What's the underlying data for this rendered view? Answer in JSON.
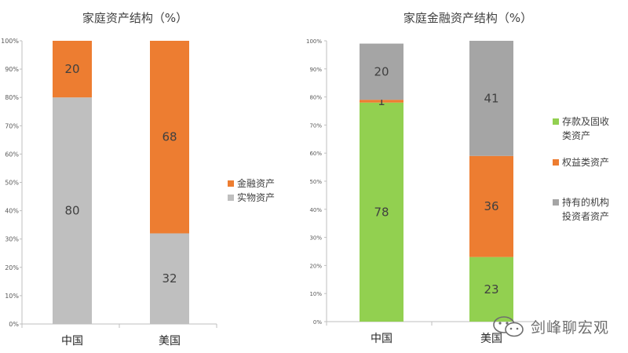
{
  "chart_data": [
    {
      "type": "bar",
      "stacked": true,
      "title": "家庭资产结构（%）",
      "categories": [
        "中国",
        "美国"
      ],
      "series": [
        {
          "name": "实物资产",
          "values": [
            80,
            32
          ],
          "color": "#bfbfbf"
        },
        {
          "name": "金融资产",
          "values": [
            20,
            68
          ],
          "color": "#ed7d31"
        }
      ],
      "legend_order": [
        "金融资产",
        "实物资产"
      ],
      "ylim": [
        0,
        100
      ],
      "yticks": [
        "0%",
        "10%",
        "20%",
        "30%",
        "40%",
        "50%",
        "60%",
        "70%",
        "80%",
        "90%",
        "100%"
      ],
      "legend_position": "right",
      "grid": false
    },
    {
      "type": "bar",
      "stacked": true,
      "title": "家庭金融资产结构（%）",
      "categories": [
        "中国",
        "美国"
      ],
      "series": [
        {
          "name": "存款及固收类资产",
          "values": [
            78,
            23
          ],
          "color": "#92d050"
        },
        {
          "name": "权益类资产",
          "values": [
            1,
            36
          ],
          "color": "#ed7d31"
        },
        {
          "name": "持有的机构投资者资产",
          "values": [
            20,
            41
          ],
          "color": "#a5a5a5"
        }
      ],
      "legend_labels": [
        [
          "存款及固收",
          "类资产"
        ],
        [
          "权益类资产"
        ],
        [
          "持有的机构",
          "投资者资产"
        ]
      ],
      "ylim": [
        0,
        100
      ],
      "yticks": [
        "0%",
        "10%",
        "20%",
        "30%",
        "40%",
        "50%",
        "60%",
        "70%",
        "80%",
        "90%",
        "100%"
      ],
      "legend_position": "right",
      "grid": false
    }
  ],
  "watermark": {
    "text": "剑峰聊宏观",
    "icon": "wechat-icon"
  }
}
